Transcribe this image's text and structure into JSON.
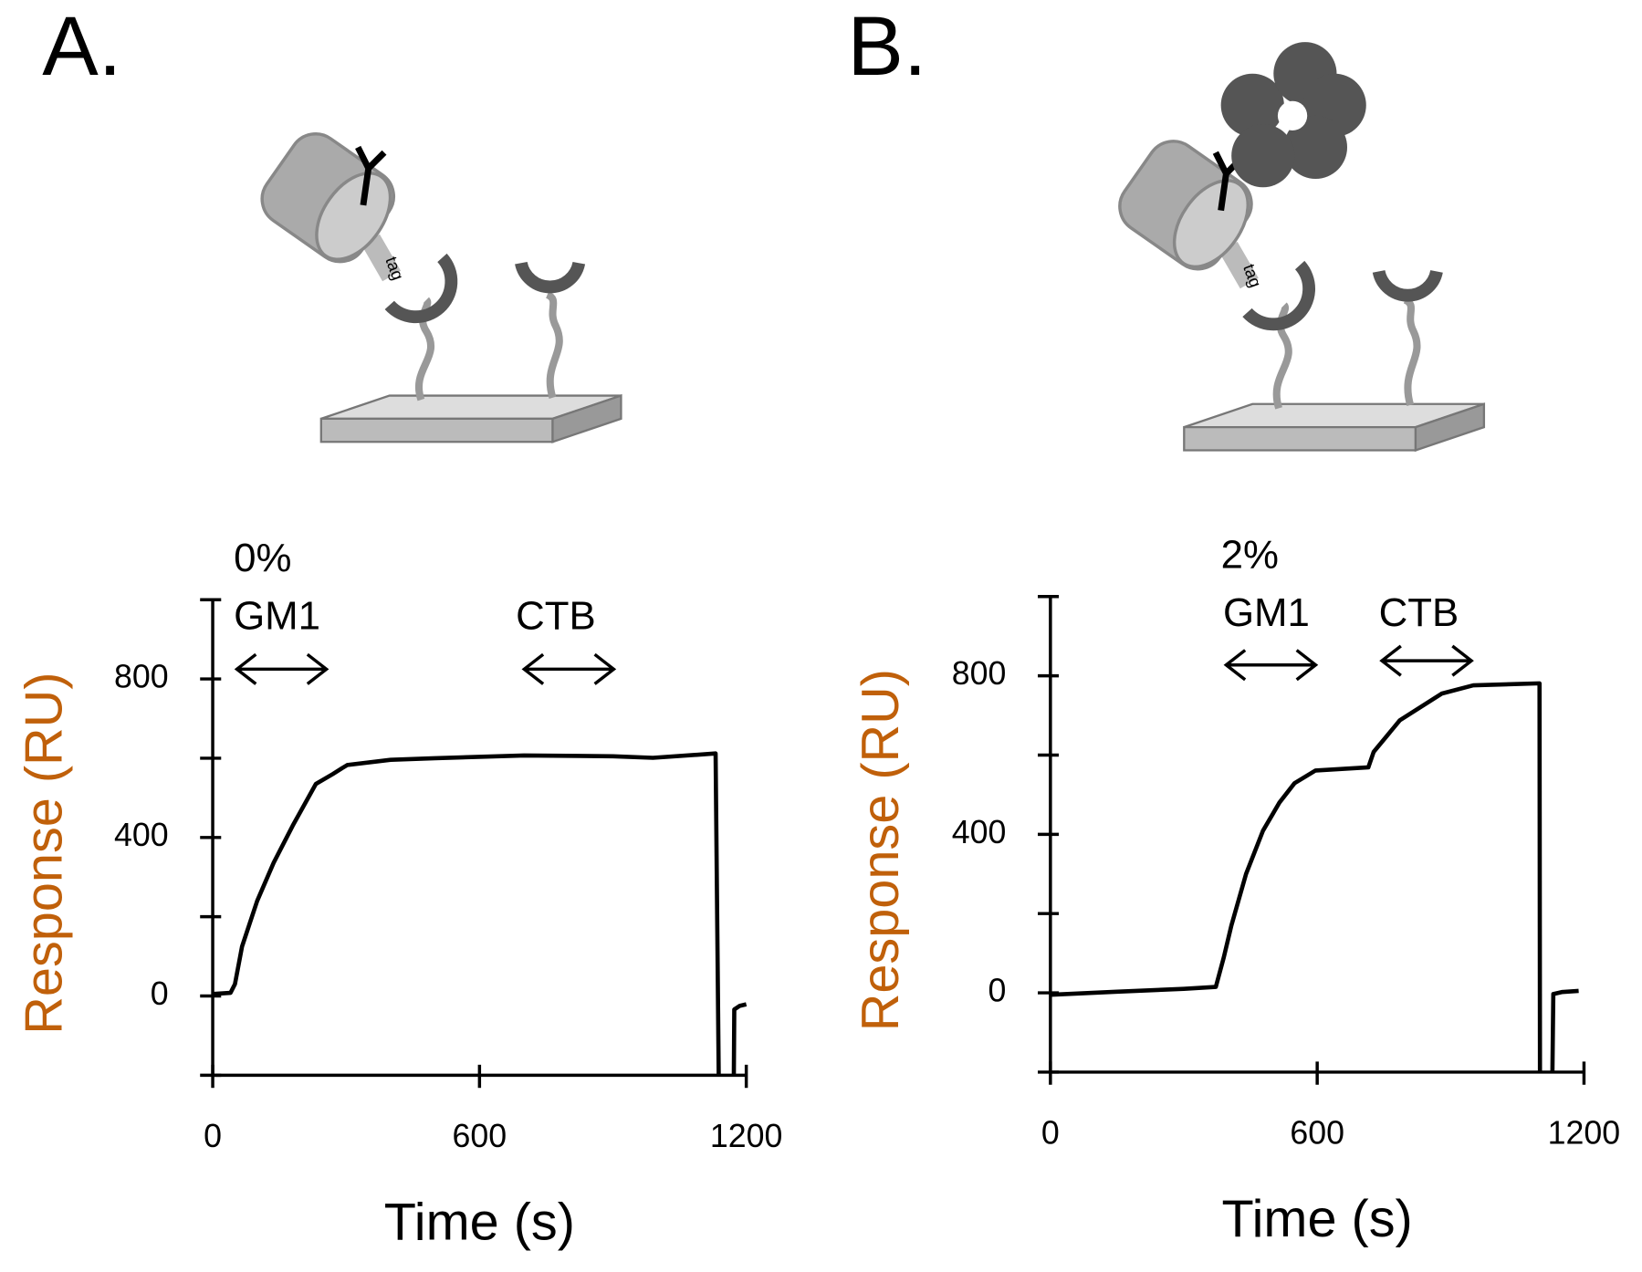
{
  "panel_labels": [
    "A.",
    "B."
  ],
  "illustration_labels": [
    "tag",
    "tag"
  ],
  "chart_data": [
    {
      "type": "line",
      "xlabel": "Time (s)",
      "ylabel": "Response (RU)",
      "ylabel_color": "#c0600a",
      "annotations": [
        "0%",
        "GM1",
        "CTB"
      ],
      "xlim": [
        0,
        1200
      ],
      "ylim": [
        -200,
        1000
      ],
      "xticks": [
        0,
        600,
        1200
      ],
      "yticks": [
        0,
        400,
        800
      ],
      "yticks_minor": [
        -200,
        200,
        600,
        1000
      ],
      "x": [
        0,
        40,
        50,
        66,
        100,
        137,
        180,
        232,
        270,
        291,
        303,
        400,
        500,
        700,
        900,
        990,
        1131,
        1138,
        1139,
        1172,
        1173,
        1185,
        1200
      ],
      "series": [
        {
          "name": "0% GM1",
          "color": "#000000",
          "values": [
            5,
            8,
            30,
            125,
            240,
            336,
            430,
            535,
            560,
            575,
            583,
            596,
            600,
            607,
            605,
            601,
            612,
            -200,
            null,
            -200,
            -34,
            -25,
            -21
          ]
        }
      ]
    },
    {
      "type": "line",
      "xlabel": "Time (s)",
      "ylabel": "Response (RU)",
      "ylabel_color": "#c0600a",
      "annotations": [
        "2%",
        "GM1",
        "CTB"
      ],
      "xlim": [
        0,
        1200
      ],
      "ylim": [
        -200,
        1000
      ],
      "xticks": [
        0,
        600,
        1200
      ],
      "yticks": [
        0,
        400,
        800
      ],
      "yticks_minor": [
        -200,
        200,
        600,
        1000
      ],
      "x": [
        0,
        150,
        300,
        372,
        390,
        407,
        440,
        478,
        515,
        549,
        596,
        715,
        727,
        786,
        880,
        951,
        1100,
        1101,
        1102,
        1129,
        1131,
        1150,
        1188
      ],
      "series": [
        {
          "name": "2% GM1",
          "color": "#000000",
          "values": [
            -5,
            3,
            10,
            15,
            90,
            170,
            300,
            409,
            480,
            529,
            561,
            569,
            608,
            688,
            755,
            776,
            781,
            -200,
            null,
            -200,
            -3,
            2,
            5
          ]
        }
      ]
    }
  ]
}
